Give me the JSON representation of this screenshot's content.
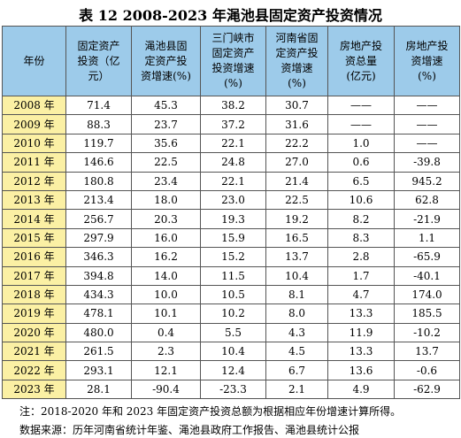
{
  "title": "表 12   2008-2023 年渑池县固定资产投资情况",
  "table": {
    "header": [
      [
        "年份"
      ],
      [
        "固定资产",
        "投资（亿",
        "元）"
      ],
      [
        "渑池县固",
        "定资产投",
        "资增速(%)"
      ],
      [
        "三门峡市",
        "固定资产",
        "投资增速",
        "(%)"
      ],
      [
        "河南省固",
        "定资产投",
        "资增速",
        "(%)"
      ],
      [
        "房地产投",
        "资总量",
        "(亿元)"
      ],
      [
        "房地产投",
        "资增速",
        "(%)"
      ]
    ],
    "rows": [
      [
        "2008 年",
        "71.4",
        "45.3",
        "38.2",
        "30.7",
        "——",
        "——"
      ],
      [
        "2009 年",
        "88.3",
        "23.7",
        "37.2",
        "31.6",
        "——",
        "——"
      ],
      [
        "2010 年",
        "119.7",
        "35.6",
        "22.1",
        "22.2",
        "1.0",
        "——"
      ],
      [
        "2011 年",
        "146.6",
        "22.5",
        "24.8",
        "27.0",
        "0.6",
        "-39.8"
      ],
      [
        "2012 年",
        "180.8",
        "23.4",
        "22.1",
        "21.4",
        "6.5",
        "945.2"
      ],
      [
        "2013 年",
        "213.4",
        "18.0",
        "23.0",
        "22.5",
        "10.6",
        "62.8"
      ],
      [
        "2014 年",
        "256.7",
        "20.3",
        "19.3",
        "19.2",
        "8.2",
        "-21.9"
      ],
      [
        "2015 年",
        "297.9",
        "16.0",
        "15.9",
        "16.5",
        "8.3",
        "1.1"
      ],
      [
        "2016 年",
        "346.3",
        "16.2",
        "15.2",
        "13.7",
        "2.8",
        "-65.9"
      ],
      [
        "2017 年",
        "394.8",
        "14.0",
        "11.5",
        "10.4",
        "1.7",
        "-40.1"
      ],
      [
        "2018 年",
        "434.3",
        "10.0",
        "10.5",
        "8.1",
        "4.7",
        "174.0"
      ],
      [
        "2019 年",
        "478.1",
        "10.1",
        "10.2",
        "8.0",
        "13.3",
        "185.5"
      ],
      [
        "2020 年",
        "480.0",
        "0.4",
        "5.5",
        "4.3",
        "11.9",
        "-10.2"
      ],
      [
        "2021 年",
        "261.5",
        "2.3",
        "10.4",
        "4.5",
        "13.3",
        "13.7"
      ],
      [
        "2022 年",
        "293.1",
        "12.1",
        "12.4",
        "6.7",
        "13.6",
        "-0.6"
      ],
      [
        "2023 年",
        "28.1",
        "-90.4",
        "-23.3",
        "2.1",
        "4.9",
        "-62.9"
      ]
    ]
  },
  "notes": [
    "注：2018-2020 年和 2023 年固定资产投资总额为根据相应年份增速计算所得。",
    "数据来源：历年河南省统计年鉴、渑池县政府工作报告、渑池县统计公报"
  ]
}
